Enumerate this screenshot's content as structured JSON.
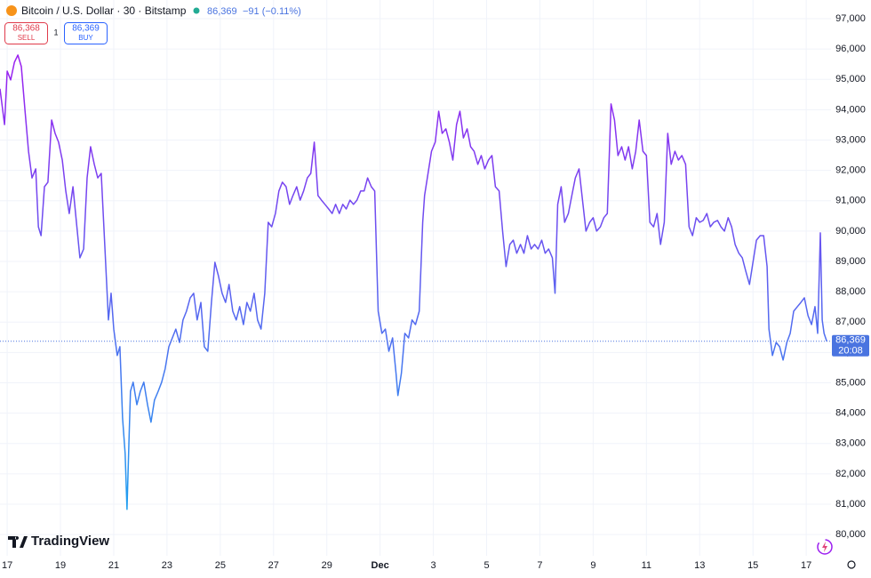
{
  "header": {
    "symbol": "Bitcoin / U.S. Dollar · 30 · Bitstamp",
    "price": "86,369",
    "change": "−91 (−0.11%)",
    "sell_price": "86,368",
    "sell_label": "SELL",
    "spread": "1",
    "buy_price": "86,369",
    "buy_label": "BUY"
  },
  "logo": "TradingView",
  "chart_data": {
    "type": "line",
    "xlim": [
      -0.27,
      30.93
    ],
    "ylim": [
      79300,
      97615
    ],
    "xticks": [
      {
        "value": 0,
        "label": "17"
      },
      {
        "value": 2,
        "label": "19"
      },
      {
        "value": 4,
        "label": "21"
      },
      {
        "value": 6,
        "label": "23"
      },
      {
        "value": 8,
        "label": "25"
      },
      {
        "value": 10,
        "label": "27"
      },
      {
        "value": 12,
        "label": "29"
      },
      {
        "value": 14,
        "label": "Dec"
      },
      {
        "value": 16,
        "label": "3"
      },
      {
        "value": 18,
        "label": "5"
      },
      {
        "value": 20,
        "label": "7"
      },
      {
        "value": 22,
        "label": "9"
      },
      {
        "value": 24,
        "label": "11"
      },
      {
        "value": 26,
        "label": "13"
      },
      {
        "value": 28,
        "label": "15"
      },
      {
        "value": 30,
        "label": "17"
      }
    ],
    "yticks": [
      {
        "value": 80000,
        "label": "80,000"
      },
      {
        "value": 81000,
        "label": "81,000"
      },
      {
        "value": 82000,
        "label": "82,000"
      },
      {
        "value": 83000,
        "label": "83,000"
      },
      {
        "value": 84000,
        "label": "84,000"
      },
      {
        "value": 85000,
        "label": "85,000"
      },
      {
        "value": 86000,
        "label": "86,000"
      },
      {
        "value": 87000,
        "label": "87,000"
      },
      {
        "value": 88000,
        "label": "88,000"
      },
      {
        "value": 89000,
        "label": "89,000"
      },
      {
        "value": 90000,
        "label": "90,000"
      },
      {
        "value": 91000,
        "label": "91,000"
      },
      {
        "value": 92000,
        "label": "92,000"
      },
      {
        "value": 93000,
        "label": "93,000"
      },
      {
        "value": 94000,
        "label": "94,000"
      },
      {
        "value": 95000,
        "label": "95,000"
      },
      {
        "value": 96000,
        "label": "96,000"
      },
      {
        "value": 97000,
        "label": "97,000"
      }
    ],
    "grid": true,
    "last_value": {
      "value": 86369,
      "label": "86,369"
    },
    "last_time": "20:08",
    "last_color": "#4a74e0",
    "series": [
      {
        "gradient": [
          "#9c1ef0",
          "#1fa0f0"
        ],
        "x": [
          -0.27,
          -0.1,
          0,
          0.13,
          0.27,
          0.4,
          0.53,
          0.67,
          0.8,
          0.93,
          1.07,
          1.17,
          1.27,
          1.4,
          1.53,
          1.67,
          1.8,
          1.93,
          2.07,
          2.2,
          2.33,
          2.47,
          2.6,
          2.73,
          2.87,
          3.0,
          3.13,
          3.27,
          3.4,
          3.53,
          3.67,
          3.8,
          3.9,
          4.0,
          4.13,
          4.23,
          4.33,
          4.43,
          4.5,
          4.57,
          4.63,
          4.73,
          4.87,
          5.0,
          5.13,
          5.27,
          5.4,
          5.53,
          5.67,
          5.8,
          5.93,
          6.07,
          6.2,
          6.33,
          6.47,
          6.6,
          6.73,
          6.87,
          7.0,
          7.13,
          7.27,
          7.4,
          7.53,
          7.67,
          7.8,
          7.93,
          8.07,
          8.2,
          8.33,
          8.47,
          8.6,
          8.73,
          8.87,
          9.0,
          9.13,
          9.27,
          9.4,
          9.53,
          9.67,
          9.8,
          9.93,
          10.07,
          10.2,
          10.33,
          10.47,
          10.6,
          10.73,
          10.87,
          11.0,
          11.13,
          11.27,
          11.4,
          11.53,
          11.67,
          11.8,
          11.93,
          12.07,
          12.2,
          12.33,
          12.47,
          12.6,
          12.73,
          12.87,
          13.0,
          13.13,
          13.27,
          13.4,
          13.53,
          13.67,
          13.8,
          13.93,
          14.07,
          14.2,
          14.33,
          14.47,
          14.6,
          14.67,
          14.8,
          14.93,
          15.07,
          15.2,
          15.33,
          15.47,
          15.6,
          15.67,
          15.8,
          15.93,
          16.07,
          16.2,
          16.33,
          16.47,
          16.6,
          16.73,
          16.87,
          17.0,
          17.13,
          17.27,
          17.4,
          17.53,
          17.67,
          17.8,
          17.93,
          18.07,
          18.2,
          18.33,
          18.47,
          18.6,
          18.73,
          18.87,
          19.0,
          19.13,
          19.27,
          19.4,
          19.53,
          19.67,
          19.8,
          19.93,
          20.07,
          20.2,
          20.33,
          20.47,
          20.57,
          20.67,
          20.8,
          20.93,
          21.07,
          21.2,
          21.33,
          21.47,
          21.6,
          21.73,
          21.87,
          22.0,
          22.13,
          22.27,
          22.4,
          22.53,
          22.67,
          22.8,
          22.93,
          23.07,
          23.2,
          23.33,
          23.47,
          23.6,
          23.73,
          23.87,
          24.0,
          24.13,
          24.27,
          24.4,
          24.53,
          24.67,
          24.8,
          24.93,
          25.07,
          25.2,
          25.33,
          25.47,
          25.6,
          25.73,
          25.87,
          26.0,
          26.13,
          26.27,
          26.4,
          26.53,
          26.67,
          26.8,
          26.93,
          27.07,
          27.2,
          27.33,
          27.47,
          27.6,
          27.73,
          27.87,
          28.0,
          28.13,
          28.27,
          28.4,
          28.53,
          28.6,
          28.73,
          28.87,
          29.0,
          29.13,
          29.27,
          29.4,
          29.53,
          29.67,
          29.8,
          29.93,
          30.07,
          30.2,
          30.33,
          30.43,
          30.53,
          30.6,
          30.67,
          30.77
        ],
        "values": [
          94690,
          93510,
          95270,
          94980,
          95560,
          95800,
          95420,
          93950,
          92630,
          91750,
          92050,
          90140,
          89850,
          91460,
          91610,
          93660,
          93220,
          92930,
          92340,
          91320,
          90580,
          91460,
          90290,
          89120,
          89410,
          91750,
          92780,
          92200,
          91750,
          91900,
          89410,
          87070,
          87950,
          86770,
          85900,
          86190,
          83840,
          82670,
          80830,
          82970,
          84720,
          85020,
          84280,
          84720,
          85020,
          84280,
          83700,
          84430,
          84720,
          85020,
          85460,
          86190,
          86480,
          86770,
          86330,
          87070,
          87360,
          87800,
          87950,
          87070,
          87650,
          86190,
          86040,
          87650,
          88970,
          88530,
          87950,
          87650,
          88240,
          87360,
          87070,
          87510,
          86920,
          87650,
          87360,
          87950,
          87070,
          86770,
          87950,
          90290,
          90140,
          90580,
          91320,
          91610,
          91460,
          90880,
          91170,
          91460,
          91020,
          91320,
          91750,
          91900,
          92930,
          91170,
          91020,
          90880,
          90730,
          90580,
          90880,
          90580,
          90880,
          90730,
          91020,
          90880,
          91020,
          91320,
          91320,
          91750,
          91460,
          91320,
          87360,
          86630,
          86770,
          86040,
          86480,
          85310,
          84580,
          85310,
          86630,
          86480,
          87070,
          86920,
          87360,
          90290,
          91170,
          91900,
          92630,
          92930,
          93950,
          93220,
          93370,
          92930,
          92340,
          93510,
          93950,
          93070,
          93370,
          92780,
          92630,
          92200,
          92490,
          92050,
          92340,
          92490,
          91460,
          91320,
          90000,
          88830,
          89560,
          89700,
          89270,
          89560,
          89270,
          89850,
          89410,
          89560,
          89410,
          89700,
          89270,
          89410,
          89120,
          87950,
          90880,
          91460,
          90290,
          90580,
          91170,
          91750,
          92050,
          91020,
          90000,
          90290,
          90440,
          90000,
          90140,
          90440,
          90580,
          94190,
          93660,
          92490,
          92780,
          92340,
          92780,
          92050,
          92630,
          93660,
          92630,
          92490,
          90290,
          90140,
          90580,
          89560,
          90290,
          93220,
          92200,
          92630,
          92340,
          92490,
          92200,
          90140,
          89850,
          90440,
          90290,
          90350,
          90580,
          90140,
          90290,
          90350,
          90140,
          90000,
          90440,
          90140,
          89560,
          89270,
          89120,
          88680,
          88240,
          88970,
          89700,
          89850,
          89850,
          88830,
          86770,
          85900,
          86330,
          86190,
          85750,
          86330,
          86630,
          87360,
          87510,
          87650,
          87800,
          87210,
          86920,
          87510,
          86630,
          89940,
          87070,
          86630,
          86369
        ]
      }
    ]
  }
}
